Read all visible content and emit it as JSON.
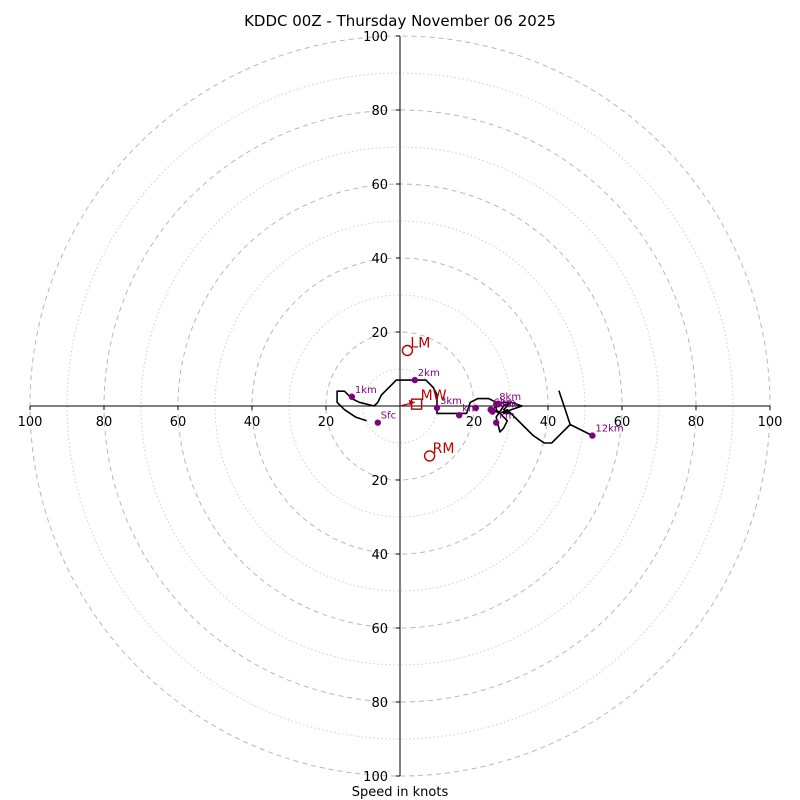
{
  "chart_data": {
    "type": "hodograph",
    "title": "KDDC 00Z - Thursday November 06 2025",
    "xlabel": "Speed in knots",
    "xlim": [
      -100,
      100
    ],
    "ylim": [
      -100,
      100
    ],
    "ring_step_major": 20,
    "ring_step_minor": 10,
    "x_ticks": [
      {
        "value": -100,
        "label": "100"
      },
      {
        "value": -80,
        "label": "80"
      },
      {
        "value": -60,
        "label": "60"
      },
      {
        "value": -40,
        "label": "40"
      },
      {
        "value": -20,
        "label": "20"
      },
      {
        "value": 20,
        "label": "20"
      },
      {
        "value": 40,
        "label": "40"
      },
      {
        "value": 60,
        "label": "60"
      },
      {
        "value": 80,
        "label": "80"
      },
      {
        "value": 100,
        "label": "100"
      }
    ],
    "y_ticks": [
      {
        "value": 100,
        "label": "100"
      },
      {
        "value": 80,
        "label": "80"
      },
      {
        "value": 60,
        "label": "60"
      },
      {
        "value": 40,
        "label": "40"
      },
      {
        "value": 20,
        "label": "20"
      },
      {
        "value": -20,
        "label": "20"
      },
      {
        "value": -40,
        "label": "40"
      },
      {
        "value": -60,
        "label": "60"
      },
      {
        "value": -80,
        "label": "80"
      },
      {
        "value": -100,
        "label": "100"
      }
    ],
    "trace": {
      "color": "#000000",
      "points": [
        [
          -9,
          -4
        ],
        [
          -12,
          -3
        ],
        [
          -15,
          -1
        ],
        [
          -17,
          1
        ],
        [
          -17,
          4
        ],
        [
          -15,
          4
        ],
        [
          -13,
          2
        ],
        [
          -11,
          1
        ],
        [
          -7,
          0
        ],
        [
          -6,
          1
        ],
        [
          -5,
          3
        ],
        [
          -4,
          4
        ],
        [
          -2,
          6
        ],
        [
          -1,
          7
        ],
        [
          1,
          7
        ],
        [
          3,
          7
        ],
        [
          5,
          7
        ],
        [
          7,
          7
        ],
        [
          9,
          5
        ],
        [
          10,
          3
        ],
        [
          10,
          0
        ],
        [
          10,
          -2
        ],
        [
          14,
          -2
        ],
        [
          18,
          -2
        ],
        [
          19,
          1
        ],
        [
          21,
          2
        ],
        [
          24,
          2
        ],
        [
          26,
          1
        ],
        [
          26,
          -1
        ],
        [
          28,
          -3
        ],
        [
          29,
          -4
        ],
        [
          28,
          -6
        ],
        [
          27,
          -7
        ],
        [
          26,
          -3
        ],
        [
          28,
          0
        ],
        [
          30,
          1
        ],
        [
          29,
          0
        ],
        [
          28,
          -1
        ],
        [
          30,
          -2
        ],
        [
          29,
          -1
        ],
        [
          27,
          -2
        ],
        [
          25,
          -1
        ],
        [
          26,
          0
        ],
        [
          28,
          1
        ],
        [
          30,
          1
        ],
        [
          33,
          0
        ],
        [
          30,
          -1
        ],
        [
          28,
          -2
        ],
        [
          30,
          -2
        ],
        [
          33,
          -5
        ],
        [
          36,
          -8
        ],
        [
          39,
          -10
        ],
        [
          41,
          -10
        ],
        [
          43,
          -8
        ],
        [
          46,
          -5
        ],
        [
          43,
          4
        ],
        [
          46,
          -5
        ],
        [
          52,
          -8
        ]
      ]
    },
    "height_markers": {
      "color": "#800080",
      "points": [
        {
          "label": "Sfc",
          "u": -6,
          "v": -4.5
        },
        {
          "label": "1km",
          "u": -13,
          "v": 2.5
        },
        {
          "label": "2km",
          "u": 4,
          "v": 7
        },
        {
          "label": "3km",
          "u": 10,
          "v": -0.5
        },
        {
          "label": "4km",
          "u": 16,
          "v": -2.5
        },
        {
          "label": "5km",
          "u": 20.5,
          "v": -0.5
        },
        {
          "label": "6km",
          "u": 24.5,
          "v": -1
        },
        {
          "label": "7km",
          "u": 26.5,
          "v": 0.5
        },
        {
          "label": "8km",
          "u": 26,
          "v": 0.5
        },
        {
          "label": "9km",
          "u": 25,
          "v": -1.5
        },
        {
          "label": "10km",
          "u": 26,
          "v": -4.5
        },
        {
          "label": "12km",
          "u": 52,
          "v": -8
        }
      ],
      "visible_labels": [
        "Sfc",
        "1km",
        "2km",
        "3km",
        "km",
        "6km",
        "8km",
        "9km",
        "km",
        "12km"
      ]
    },
    "storm_motion": {
      "color": "#c00000",
      "points": [
        {
          "label": "LM",
          "u": 2,
          "v": 15
        },
        {
          "label": "RM",
          "u": 8,
          "v": -13.5
        }
      ],
      "mean_wind": {
        "label": "MW",
        "u": 4.5,
        "v": 0.5
      },
      "shear_arrow": {
        "from": [
          0,
          0
        ],
        "to": [
          4,
          1
        ]
      }
    }
  }
}
